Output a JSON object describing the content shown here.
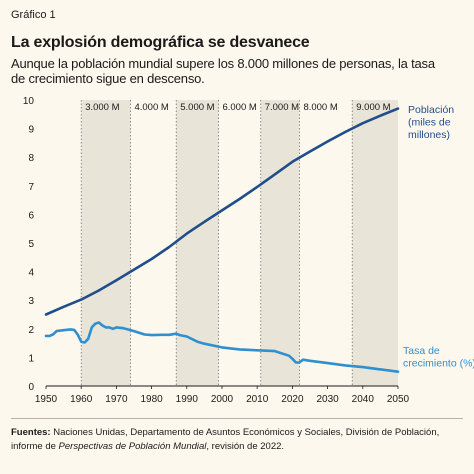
{
  "figure_label": "Gráfico 1",
  "title": "La explosión demográfica se desvanece",
  "subtitle": "Aunque la población mundial supere los 8.000 millones de personas, la tasa de crecimiento sigue en descenso.",
  "source": {
    "label": "Fuentes:",
    "text_1": " Naciones Unidas, Departamento de Asuntos Económicos y Sociales, División de Población, informe de ",
    "italic": "Perspectivas de Población Mundial",
    "text_2": ", revisión de 2022."
  },
  "colors": {
    "population": "#1f4e8a",
    "growth": "#2f8fcf",
    "band": "#e9e4d8",
    "background": "#fdf8ee",
    "divider": "#777777"
  },
  "chart_data": {
    "type": "line",
    "x_range": [
      1950,
      2050
    ],
    "y_range": [
      0,
      10
    ],
    "x_ticks": [
      1950,
      1960,
      1970,
      1980,
      1990,
      2000,
      2010,
      2020,
      2030,
      2040,
      2050
    ],
    "y_ticks": [
      0,
      1,
      2,
      3,
      4,
      5,
      6,
      7,
      8,
      9,
      10
    ],
    "grid": false,
    "milestones": [
      {
        "label": "3.000 M",
        "year": 1960
      },
      {
        "label": "4.000 M",
        "year": 1974
      },
      {
        "label": "5.000 M",
        "year": 1987
      },
      {
        "label": "6.000 M",
        "year": 1999
      },
      {
        "label": "7.000 M",
        "year": 2011
      },
      {
        "label": "8.000 M",
        "year": 2022
      },
      {
        "label": "9.000 M",
        "year": 2037
      }
    ],
    "series": [
      {
        "name": "Población (miles de millones)",
        "name_lines": [
          "Población",
          "(miles de",
          "millones)"
        ],
        "x": [
          1950,
          1955,
          1960,
          1965,
          1970,
          1975,
          1980,
          1985,
          1990,
          1995,
          2000,
          2005,
          2010,
          2015,
          2020,
          2025,
          2030,
          2035,
          2040,
          2045,
          2050
        ],
        "y": [
          2.5,
          2.77,
          3.02,
          3.34,
          3.7,
          4.07,
          4.44,
          4.86,
          5.33,
          5.74,
          6.14,
          6.54,
          6.96,
          7.4,
          7.84,
          8.2,
          8.55,
          8.88,
          9.19,
          9.45,
          9.7
        ]
      },
      {
        "name": "Tasa de crecimiento (%)",
        "name_lines": [
          "Tasa de",
          "crecimiento (%)"
        ],
        "x": [
          1950,
          1951,
          1952,
          1953,
          1955,
          1957,
          1958,
          1959,
          1960,
          1961,
          1962,
          1963,
          1964,
          1965,
          1966,
          1967,
          1968,
          1969,
          1970,
          1972,
          1975,
          1978,
          1980,
          1983,
          1985,
          1987,
          1988,
          1990,
          1993,
          1995,
          2000,
          2005,
          2010,
          2015,
          2019,
          2020,
          2021,
          2022,
          2023,
          2025,
          2030,
          2035,
          2040,
          2045,
          2050
        ],
        "y": [
          1.75,
          1.75,
          1.8,
          1.92,
          1.95,
          1.98,
          1.96,
          1.8,
          1.55,
          1.52,
          1.65,
          2.05,
          2.18,
          2.22,
          2.12,
          2.05,
          2.05,
          2.0,
          2.05,
          2.02,
          1.92,
          1.8,
          1.78,
          1.79,
          1.79,
          1.83,
          1.78,
          1.73,
          1.55,
          1.48,
          1.35,
          1.28,
          1.25,
          1.22,
          1.06,
          0.95,
          0.82,
          0.82,
          0.92,
          0.88,
          0.8,
          0.72,
          0.66,
          0.58,
          0.5
        ]
      }
    ]
  }
}
